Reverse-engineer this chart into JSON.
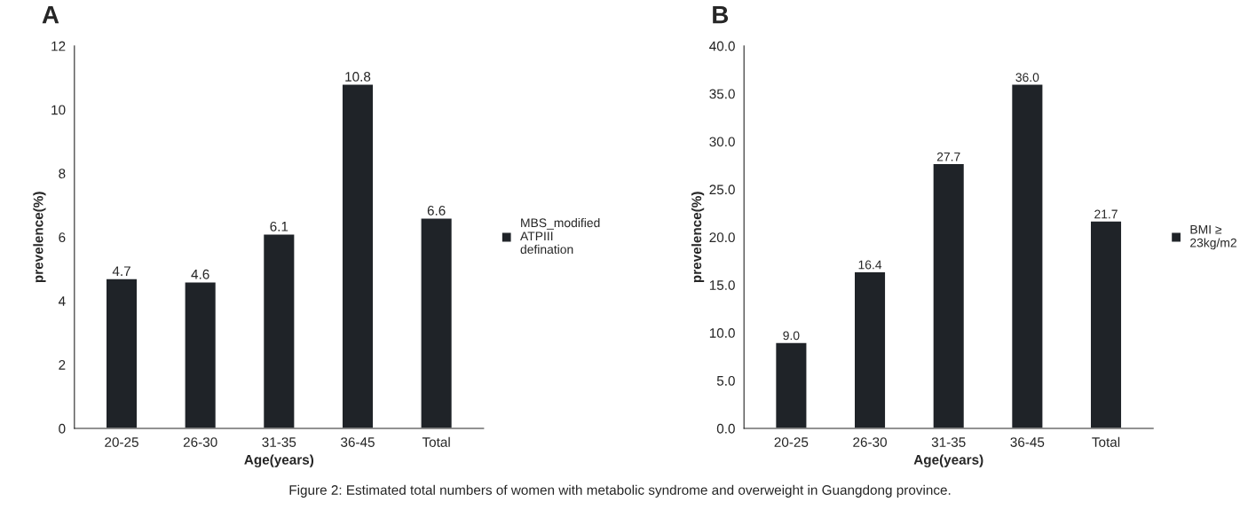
{
  "chart_data": [
    {
      "type": "bar",
      "title": "A",
      "xlabel": "Age(years)",
      "ylabel": "prevelence(%)",
      "categories": [
        "20-25",
        "26-30",
        "31-35",
        "36-45",
        "Total"
      ],
      "series": [
        {
          "name": "MBS_modified\nATPIII\ndefination",
          "color": "#1f2328",
          "values": [
            4.7,
            4.6,
            6.1,
            10.8,
            6.6
          ]
        }
      ],
      "ylim": [
        0,
        12
      ],
      "yticks": [
        0,
        2,
        4,
        6,
        8,
        10,
        12
      ],
      "data_labels": true,
      "legend": "right",
      "grid": false,
      "annotations": [
        "Figure 2: Estimated total numbers of women with metabolic syndrome and overweight in Guangdong province."
      ]
    },
    {
      "type": "bar",
      "title": "B",
      "xlabel": "Age(years)",
      "ylabel": "prevelence(%)",
      "categories": [
        "20-25",
        "26-30",
        "31-35",
        "36-45",
        "Total"
      ],
      "series": [
        {
          "name": "BMI ≥\n23kg/m2",
          "color": "#1f2328",
          "values": [
            9.0,
            16.4,
            27.7,
            36.0,
            21.7
          ]
        }
      ],
      "ylim": [
        0,
        40
      ],
      "yticks": [
        {
          "value": 0,
          "label": "0.0"
        },
        {
          "value": 5,
          "label": "5.0"
        },
        {
          "value": 10,
          "label": "10.0"
        },
        {
          "value": 15,
          "label": "15.0"
        },
        {
          "value": 20,
          "label": "20.0"
        },
        {
          "value": 25,
          "label": "25.0"
        },
        {
          "value": 30,
          "label": "30.0"
        },
        {
          "value": 35,
          "label": "35.0"
        },
        {
          "value": 40,
          "label": "40.0"
        }
      ],
      "value_labels": [
        "9.0",
        "16.4",
        "27.7",
        "36.0",
        "21.7"
      ],
      "legend": "right",
      "grid": false
    }
  ]
}
